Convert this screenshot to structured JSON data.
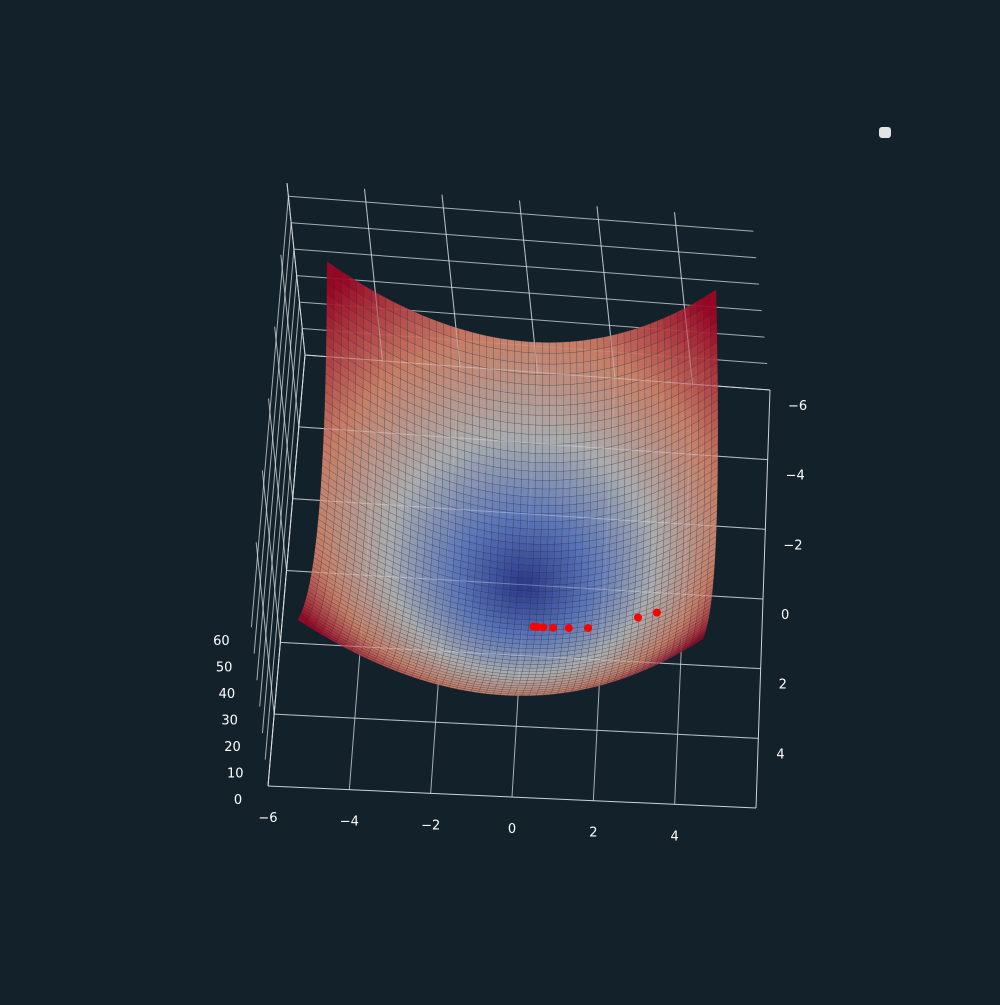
{
  "chart_data": {
    "type": "surface3d",
    "title": "",
    "x_ticks": [
      -6,
      -4,
      -2,
      0,
      2,
      4
    ],
    "y_ticks": [
      -6,
      -4,
      -2,
      0,
      2,
      4
    ],
    "z_ticks": [
      0,
      10,
      20,
      30,
      40,
      50,
      60
    ],
    "x_range": [
      -6,
      6
    ],
    "y_range": [
      -6,
      6
    ],
    "z_range": [
      0,
      65
    ],
    "surface": {
      "expression": "z = x^2 + y^2",
      "x_range": [
        -5,
        5
      ],
      "y_range": [
        -5,
        5
      ],
      "colormap": "coolwarm"
    },
    "trajectory": {
      "color": "#ff0000",
      "points": [
        {
          "x": 3.5,
          "y": 1.7,
          "z": 15.14
        },
        {
          "x": 3.0,
          "y": 1.6,
          "z": 11.56
        },
        {
          "x": 1.7,
          "y": 1.5,
          "z": 5.14
        },
        {
          "x": 1.2,
          "y": 1.4,
          "z": 3.4
        },
        {
          "x": 0.8,
          "y": 1.35,
          "z": 2.46
        },
        {
          "x": 0.55,
          "y": 1.32,
          "z": 2.04
        },
        {
          "x": 0.4,
          "y": 1.31,
          "z": 1.88
        },
        {
          "x": 0.3,
          "y": 1.3,
          "z": 1.78
        }
      ]
    },
    "legend": {
      "placement": "top-right",
      "entries": []
    },
    "grid": true,
    "colors": {
      "background": "#13222a",
      "pane_edge": "#ffffff",
      "grid": "#d8dde2",
      "tick_text": "#ffffff",
      "marker": "#ff0000"
    }
  }
}
